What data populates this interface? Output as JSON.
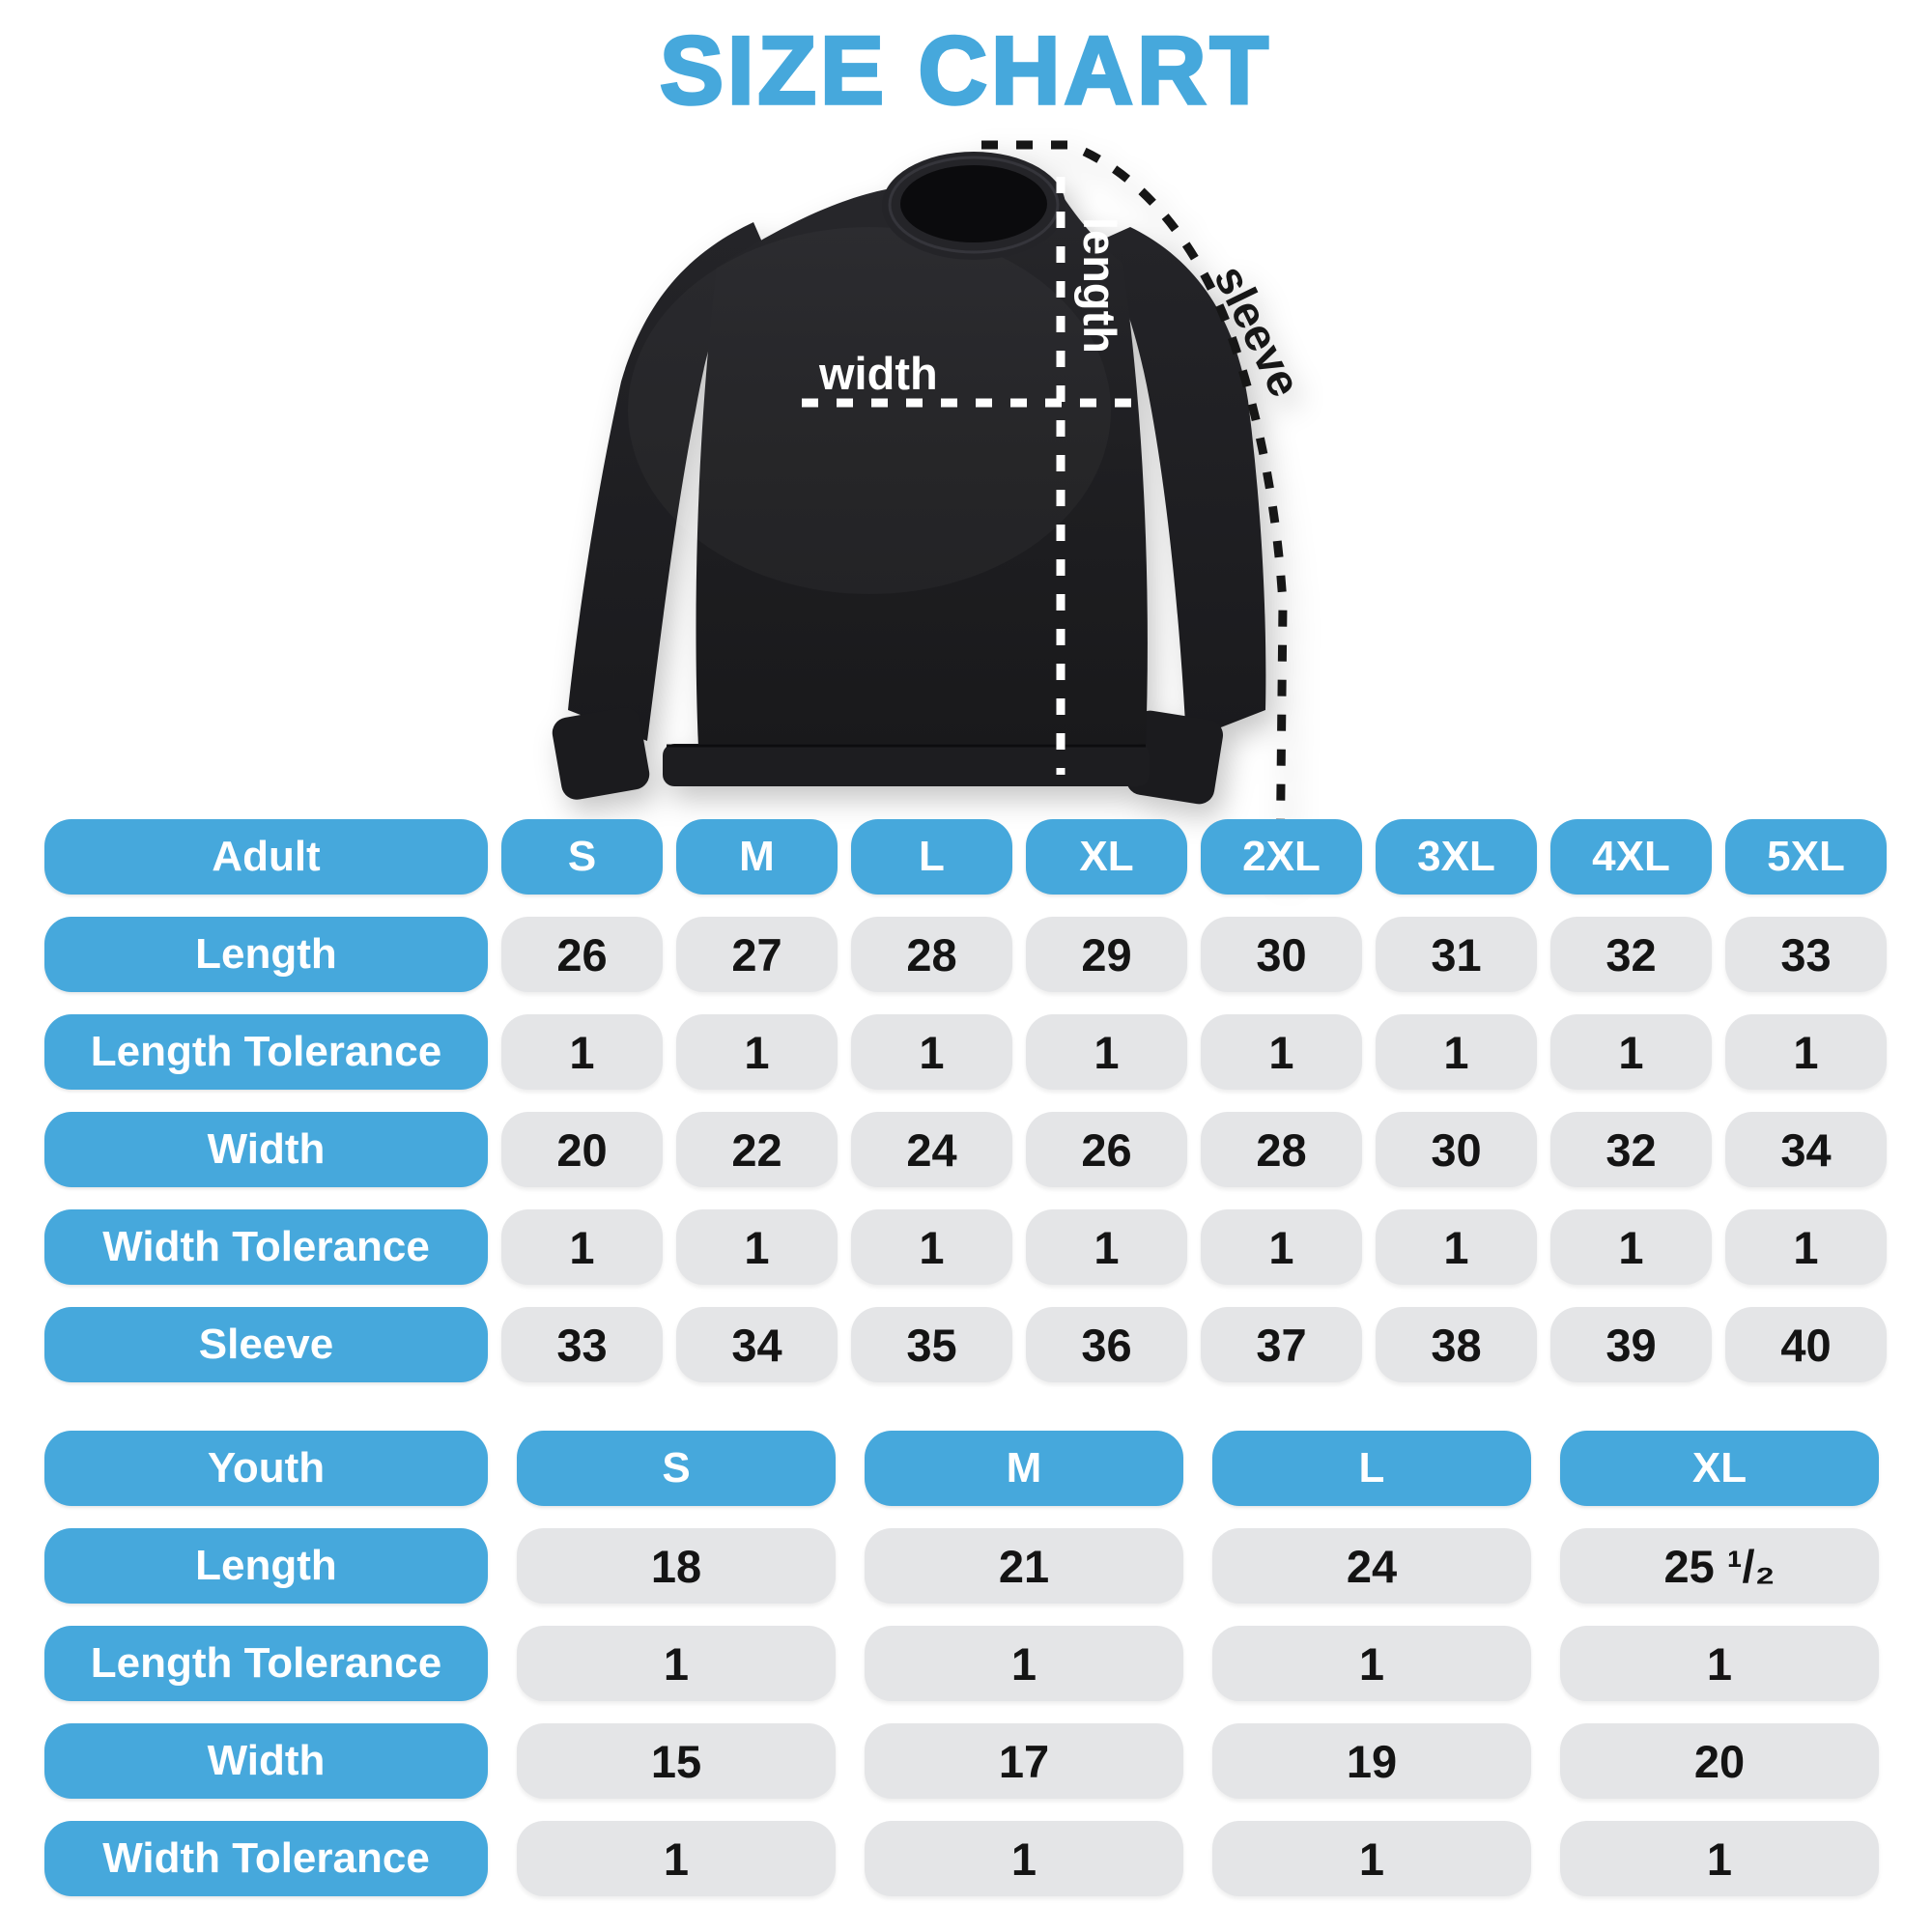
{
  "title": "SIZE CHART",
  "colors": {
    "accent_blue": "#46A8DC",
    "cell_gray": "#E4E5E7",
    "cell_text": "#141414",
    "pill_text": "#FFFFFF",
    "garment_black": "#1E1E21",
    "background": "#FFFFFF"
  },
  "figure": {
    "garment": "black-crewneck-sweatshirt",
    "labels": {
      "width": "width",
      "length": "length",
      "sleeve": "sleeve"
    }
  },
  "adult_table": {
    "header": {
      "label": "Adult",
      "sizes": [
        "S",
        "M",
        "L",
        "XL",
        "2XL",
        "3XL",
        "4XL",
        "5XL"
      ]
    },
    "rows": [
      {
        "label": "Length",
        "values": [
          "26",
          "27",
          "28",
          "29",
          "30",
          "31",
          "32",
          "33"
        ]
      },
      {
        "label": "Length Tolerance",
        "values": [
          "1",
          "1",
          "1",
          "1",
          "1",
          "1",
          "1",
          "1"
        ]
      },
      {
        "label": "Width",
        "values": [
          "20",
          "22",
          "24",
          "26",
          "28",
          "30",
          "32",
          "34"
        ]
      },
      {
        "label": "Width Tolerance",
        "values": [
          "1",
          "1",
          "1",
          "1",
          "1",
          "1",
          "1",
          "1"
        ]
      },
      {
        "label": "Sleeve",
        "values": [
          "33",
          "34",
          "35",
          "36",
          "37",
          "38",
          "39",
          "40"
        ]
      }
    ]
  },
  "youth_table": {
    "header": {
      "label": "Youth",
      "sizes": [
        "S",
        "M",
        "L",
        "XL"
      ]
    },
    "rows": [
      {
        "label": "Length",
        "values": [
          "18",
          "21",
          "24",
          "25 ¹/₂"
        ]
      },
      {
        "label": "Length Tolerance",
        "values": [
          "1",
          "1",
          "1",
          "1"
        ]
      },
      {
        "label": "Width",
        "values": [
          "15",
          "17",
          "19",
          "20"
        ]
      },
      {
        "label": "Width Tolerance",
        "values": [
          "1",
          "1",
          "1",
          "1"
        ]
      }
    ]
  }
}
